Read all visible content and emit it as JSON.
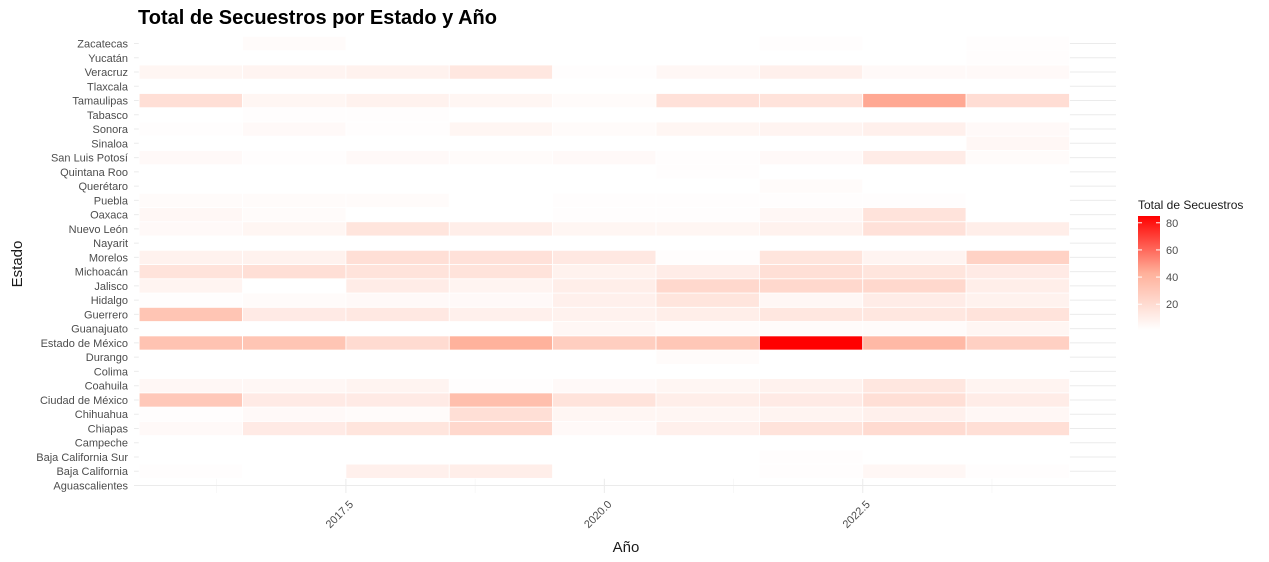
{
  "chart_data": {
    "type": "heatmap",
    "title": "Total de Secuestros por Estado y Año",
    "xlabel": "Año",
    "ylabel": "Estado",
    "x_ticks": [
      "2017.5",
      "2020.0",
      "2022.5"
    ],
    "x_tick_values": [
      2017.5,
      2020.0,
      2022.5
    ],
    "xlim": [
      2015.45,
      2024.95
    ],
    "years": [
      2016,
      2017,
      2018,
      2019,
      2020,
      2021,
      2022,
      2023,
      2024
    ],
    "states": [
      "Aguascalientes",
      "Baja California",
      "Baja California Sur",
      "Campeche",
      "Chiapas",
      "Chihuahua",
      "Ciudad de México",
      "Coahuila",
      "Colima",
      "Durango",
      "Estado de México",
      "Guanajuato",
      "Guerrero",
      "Hidalgo",
      "Jalisco",
      "Michoacán",
      "Morelos",
      "Nayarit",
      "Nuevo León",
      "Oaxaca",
      "Puebla",
      "Querétaro",
      "Quintana Roo",
      "San Luis Potosí",
      "Sinaloa",
      "Sonora",
      "Tabasco",
      "Tamaulipas",
      "Tlaxcala",
      "Veracruz",
      "Yucatán",
      "Zacatecas"
    ],
    "values": [
      [
        null,
        null,
        null,
        null,
        null,
        null,
        null,
        null,
        null
      ],
      [
        2,
        1,
        9,
        10,
        1,
        1,
        2,
        5,
        2
      ],
      [
        1,
        1,
        1,
        1,
        1,
        1,
        2,
        1,
        1
      ],
      [
        1,
        1,
        1,
        1,
        1,
        1,
        1,
        1,
        1
      ],
      [
        4,
        12,
        15,
        22,
        4,
        9,
        16,
        20,
        18
      ],
      [
        2,
        4,
        3,
        18,
        6,
        6,
        7,
        9,
        5
      ],
      [
        30,
        12,
        12,
        35,
        16,
        10,
        12,
        18,
        11
      ],
      [
        5,
        5,
        7,
        2,
        4,
        6,
        8,
        14,
        7
      ],
      [
        1,
        1,
        1,
        1,
        1,
        1,
        1,
        1,
        1
      ],
      [
        1,
        1,
        1,
        1,
        1,
        3,
        1,
        1,
        1
      ],
      [
        33,
        32,
        20,
        42,
        27,
        31,
        85,
        38,
        26
      ],
      [
        1,
        1,
        1,
        1,
        5,
        3,
        3,
        3,
        6
      ],
      [
        32,
        12,
        13,
        9,
        8,
        10,
        14,
        14,
        16
      ],
      [
        2,
        3,
        4,
        4,
        9,
        15,
        5,
        11,
        8
      ],
      [
        7,
        1,
        11,
        7,
        10,
        22,
        22,
        22,
        10
      ],
      [
        16,
        18,
        16,
        16,
        8,
        11,
        18,
        15,
        12
      ],
      [
        8,
        8,
        18,
        17,
        13,
        2,
        15,
        7,
        25
      ],
      [
        1,
        1,
        1,
        1,
        1,
        1,
        1,
        1,
        1
      ],
      [
        4,
        6,
        15,
        10,
        6,
        6,
        8,
        17,
        10
      ],
      [
        5,
        3,
        1,
        1,
        2,
        2,
        5,
        16,
        1
      ],
      [
        3,
        3,
        3,
        1,
        2,
        2,
        2,
        2,
        1
      ],
      [
        1,
        1,
        1,
        1,
        1,
        1,
        3,
        1,
        1
      ],
      [
        1,
        1,
        1,
        1,
        1,
        2,
        1,
        1,
        1
      ],
      [
        4,
        2,
        4,
        3,
        4,
        2,
        4,
        11,
        3
      ],
      [
        1,
        1,
        1,
        1,
        1,
        1,
        1,
        1,
        5
      ],
      [
        2,
        4,
        2,
        6,
        3,
        6,
        7,
        9,
        4
      ],
      [
        1,
        2,
        2,
        1,
        1,
        1,
        1,
        1,
        1
      ],
      [
        18,
        6,
        8,
        6,
        3,
        17,
        16,
        45,
        19
      ],
      [
        1,
        1,
        1,
        1,
        1,
        1,
        1,
        1,
        1
      ],
      [
        6,
        7,
        8,
        14,
        2,
        5,
        9,
        4,
        4
      ],
      [
        1,
        1,
        1,
        1,
        1,
        1,
        1,
        1,
        2
      ],
      [
        1,
        3,
        1,
        1,
        1,
        1,
        2,
        1,
        2
      ]
    ],
    "fill_range": [
      1,
      85
    ],
    "color_low": "#ffffff",
    "color_high": "#ff0000",
    "legend": {
      "title": "Total de Secuestros",
      "ticks": [
        20,
        40,
        60,
        80
      ],
      "position": "right"
    },
    "grid": true
  }
}
